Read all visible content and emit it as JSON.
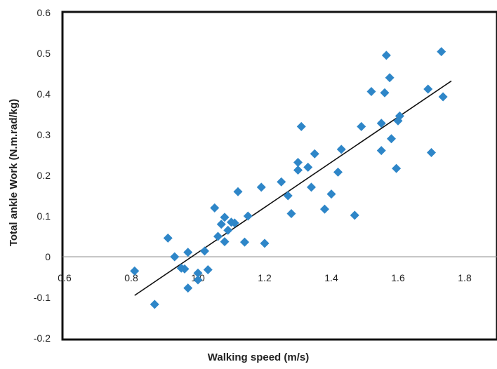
{
  "chart_data": {
    "type": "scatter",
    "title": "",
    "xlabel": "Walking speed (m/s)",
    "ylabel": "Total ankle Work  (N.m.rad/kg)",
    "xlim": [
      0.6,
      1.9
    ],
    "ylim": [
      -0.2,
      0.6
    ],
    "xticks": [
      0.6,
      0.8,
      1.0,
      1.2,
      1.4,
      1.6,
      1.8
    ],
    "xtick_labels": [
      "0.6",
      "0.8",
      "1.0",
      "1.2",
      "1.4",
      "1.6",
      "1.8"
    ],
    "yticks": [
      -0.2,
      -0.1,
      0,
      0.1,
      0.2,
      0.3,
      0.4,
      0.5,
      0.6
    ],
    "ytick_labels": [
      "-0.2",
      "-0.1",
      "0",
      "0.1",
      "0.2",
      "0.3",
      "0.4",
      "0.5",
      "0.6"
    ],
    "grid": false,
    "legend": "none",
    "marker": "diamond",
    "marker_color": "#2e86c8",
    "trendline": {
      "type": "linear",
      "x_start": 0.81,
      "y_start": -0.095,
      "x_end": 1.76,
      "y_end": 0.432
    },
    "points": [
      {
        "x": 0.81,
        "y": -0.035
      },
      {
        "x": 0.87,
        "y": -0.117
      },
      {
        "x": 0.91,
        "y": 0.046
      },
      {
        "x": 0.93,
        "y": 0.0
      },
      {
        "x": 0.95,
        "y": -0.028
      },
      {
        "x": 0.96,
        "y": -0.03
      },
      {
        "x": 0.97,
        "y": 0.011
      },
      {
        "x": 0.97,
        "y": -0.077
      },
      {
        "x": 1.0,
        "y": -0.04
      },
      {
        "x": 1.0,
        "y": -0.057
      },
      {
        "x": 1.02,
        "y": 0.014
      },
      {
        "x": 1.03,
        "y": -0.032
      },
      {
        "x": 1.05,
        "y": 0.12
      },
      {
        "x": 1.06,
        "y": 0.05
      },
      {
        "x": 1.07,
        "y": 0.08
      },
      {
        "x": 1.08,
        "y": 0.097
      },
      {
        "x": 1.08,
        "y": 0.037
      },
      {
        "x": 1.09,
        "y": 0.065
      },
      {
        "x": 1.1,
        "y": 0.085
      },
      {
        "x": 1.11,
        "y": 0.083
      },
      {
        "x": 1.12,
        "y": 0.16
      },
      {
        "x": 1.14,
        "y": 0.036
      },
      {
        "x": 1.15,
        "y": 0.1
      },
      {
        "x": 1.19,
        "y": 0.171
      },
      {
        "x": 1.2,
        "y": 0.033
      },
      {
        "x": 1.25,
        "y": 0.184
      },
      {
        "x": 1.27,
        "y": 0.15
      },
      {
        "x": 1.28,
        "y": 0.106
      },
      {
        "x": 1.3,
        "y": 0.232
      },
      {
        "x": 1.3,
        "y": 0.213
      },
      {
        "x": 1.31,
        "y": 0.32
      },
      {
        "x": 1.33,
        "y": 0.22
      },
      {
        "x": 1.34,
        "y": 0.171
      },
      {
        "x": 1.35,
        "y": 0.253
      },
      {
        "x": 1.38,
        "y": 0.117
      },
      {
        "x": 1.4,
        "y": 0.154
      },
      {
        "x": 1.42,
        "y": 0.208
      },
      {
        "x": 1.43,
        "y": 0.264
      },
      {
        "x": 1.47,
        "y": 0.102
      },
      {
        "x": 1.49,
        "y": 0.32
      },
      {
        "x": 1.52,
        "y": 0.406
      },
      {
        "x": 1.55,
        "y": 0.328
      },
      {
        "x": 1.55,
        "y": 0.261
      },
      {
        "x": 1.56,
        "y": 0.403
      },
      {
        "x": 1.565,
        "y": 0.495
      },
      {
        "x": 1.575,
        "y": 0.44
      },
      {
        "x": 1.58,
        "y": 0.29
      },
      {
        "x": 1.595,
        "y": 0.217
      },
      {
        "x": 1.6,
        "y": 0.334
      },
      {
        "x": 1.605,
        "y": 0.346
      },
      {
        "x": 1.69,
        "y": 0.412
      },
      {
        "x": 1.7,
        "y": 0.256
      },
      {
        "x": 1.73,
        "y": 0.504
      },
      {
        "x": 1.735,
        "y": 0.393
      }
    ]
  }
}
